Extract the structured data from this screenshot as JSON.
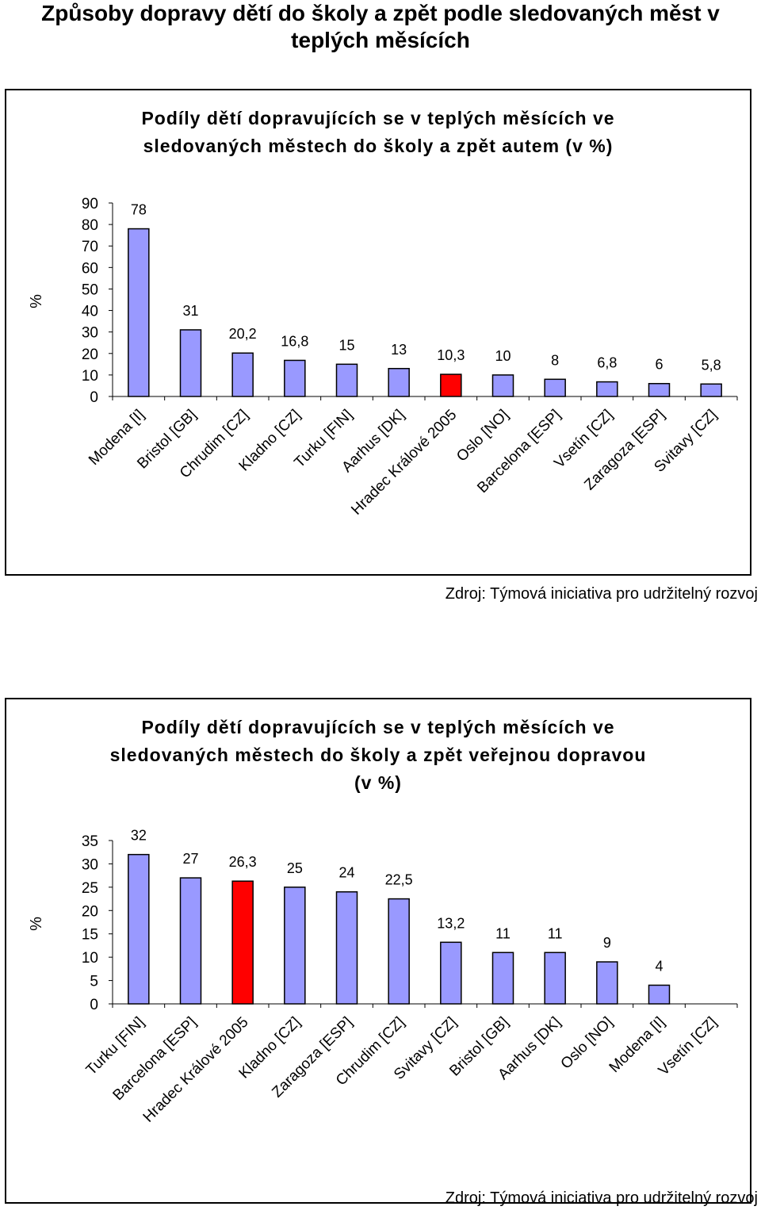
{
  "page_title": "Způsoby dopravy dětí do školy a zpět podle sledovaných měst v teplých měsících",
  "chart_data": [
    {
      "type": "bar",
      "title": "Podíly dětí dopravujících se v teplých měsících ve sledovaných městech do školy a zpět autem (v %)",
      "ylabel": "%",
      "ylim": [
        0,
        90
      ],
      "yticks": [
        0,
        10,
        20,
        30,
        40,
        50,
        60,
        70,
        80,
        90
      ],
      "categories": [
        "Modena [I]",
        "Bristol [GB]",
        "Chrudim [CZ]",
        "Kladno [CZ]",
        "Turku [FIN]",
        "Aarhus [DK]",
        "Hradec Králové 2005",
        "Oslo [NO]",
        "Barcelona [ESP]",
        "Vsetín [CZ]",
        "Zaragoza [ESP]",
        "Svitavy [CZ]"
      ],
      "values": [
        78,
        31,
        20.2,
        16.8,
        15,
        13,
        10.3,
        10,
        8,
        6.8,
        6,
        5.8
      ],
      "value_labels": [
        "78",
        "31",
        "20,2",
        "16,8",
        "15",
        "13",
        "10,3",
        "10",
        "8",
        "6,8",
        "6",
        "5,8"
      ],
      "highlight_index": 6,
      "bar_color": "#9999ff",
      "highlight_color": "#ff0000",
      "grid": false,
      "source": "Zdroj: Týmová iniciativa pro udržitelný rozvoj"
    },
    {
      "type": "bar",
      "title": "Podíly dětí dopravujících se v teplých měsících ve sledovaných městech do školy a zpět veřejnou dopravou (v %)",
      "ylabel": "%",
      "ylim": [
        0,
        35
      ],
      "yticks": [
        0,
        5,
        10,
        15,
        20,
        25,
        30,
        35
      ],
      "categories": [
        "Turku [FIN]",
        "Barcelona [ESP]",
        "Hradec Králové 2005",
        "Kladno [CZ]",
        "Zaragoza [ESP]",
        "Chrudim [CZ]",
        "Svitavy [CZ]",
        "Bristol [GB]",
        "Aarhus [DK]",
        "Oslo [NO]",
        "Modena [I]",
        "Vsetín [CZ]"
      ],
      "values": [
        32,
        27,
        26.3,
        25,
        24,
        22.5,
        13.2,
        11,
        11,
        9,
        4,
        null
      ],
      "value_labels": [
        "32",
        "27",
        "26,3",
        "25",
        "24",
        "22,5",
        "13,2",
        "11",
        "11",
        "9",
        "4",
        ""
      ],
      "highlight_index": 2,
      "bar_color": "#9999ff",
      "highlight_color": "#ff0000",
      "grid": false,
      "source": "Zdroj: Týmová iniciativa pro udržitelný rozvoj"
    }
  ]
}
